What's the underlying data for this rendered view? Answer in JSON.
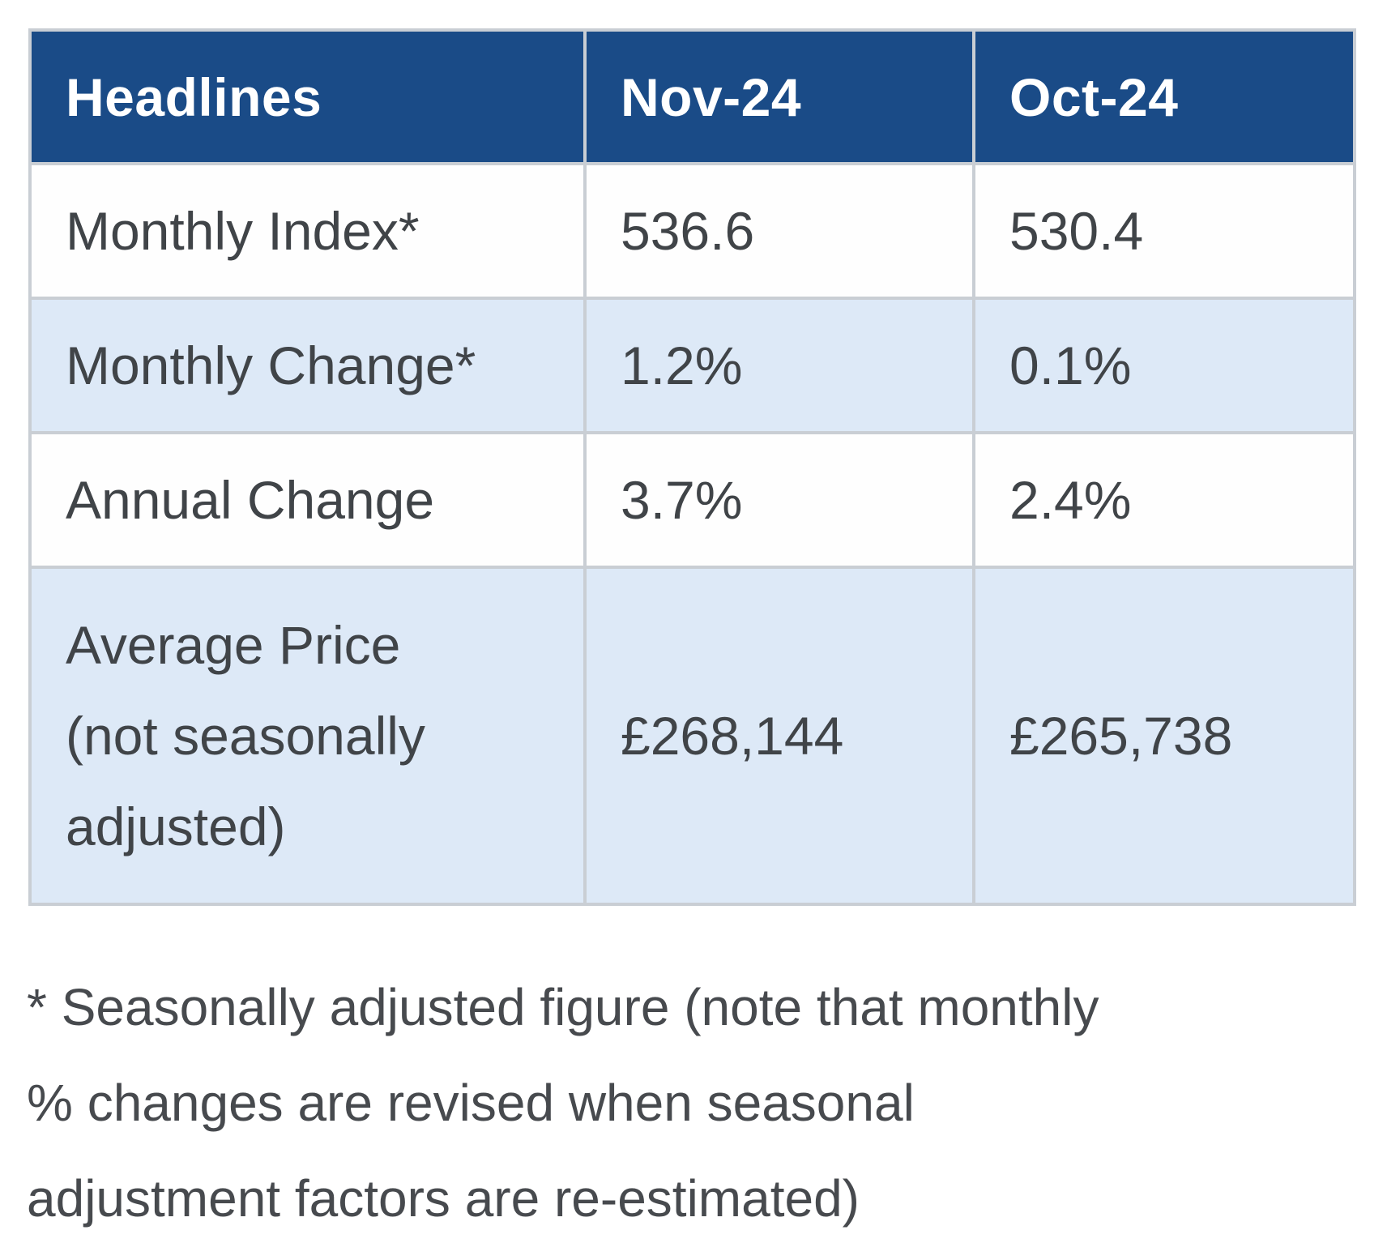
{
  "table": {
    "columns": [
      "Headlines",
      "Nov-24",
      "Oct-24"
    ],
    "rows": [
      {
        "label": "Monthly Index*",
        "nov": "536.6",
        "oct": "530.4"
      },
      {
        "label": "Monthly Change*",
        "nov": "1.2%",
        "oct": "0.1%"
      },
      {
        "label": "Annual Change",
        "nov": "3.7%",
        "oct": "2.4%"
      },
      {
        "label": "Average Price (not seasonally adjusted)",
        "label_lines": [
          "Average Price",
          "(not seasonally",
          "adjusted)"
        ],
        "nov": "£268,144",
        "oct": "£265,738"
      }
    ]
  },
  "footnote": {
    "text": "* Seasonally adjusted figure (note that monthly % changes are revised when seasonal adjustment factors are re-estimated)",
    "lines": [
      "* Seasonally adjusted figure (note that monthly",
      "% changes are revised when seasonal",
      "adjustment factors are re-estimated)"
    ]
  },
  "colors": {
    "header_background": "#1a4b87",
    "header_text": "#ffffff",
    "row_white": "#fefefe",
    "row_light_blue": "#dde9f7",
    "grid_border": "#c9ced4",
    "body_text": "#404448",
    "footnote_text": "#474a4e",
    "page_background": "#ffffff"
  },
  "chart_data": {
    "type": "table",
    "title": "Headlines",
    "columns": [
      "Headlines",
      "Nov-24",
      "Oct-24"
    ],
    "rows": [
      [
        "Monthly Index*",
        "536.6",
        "530.4"
      ],
      [
        "Monthly Change*",
        "1.2%",
        "0.1%"
      ],
      [
        "Annual Change",
        "3.7%",
        "2.4%"
      ],
      [
        "Average Price (not seasonally adjusted)",
        "£268,144",
        "£265,738"
      ]
    ]
  }
}
